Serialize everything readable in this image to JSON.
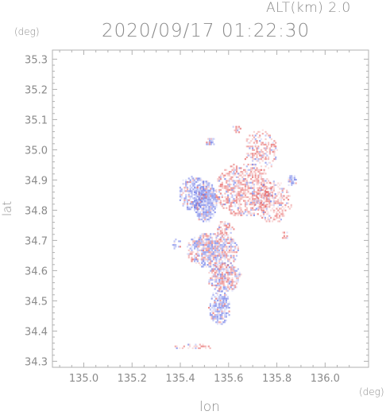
{
  "chart_data": {
    "type": "heatmap",
    "title": "2020/09/17 01:22:30",
    "subtitle": "ALT(km) 2.0",
    "xlabel": "lon",
    "ylabel": "lat",
    "x_unit": "(deg)",
    "y_unit": "(deg)",
    "xlim": [
      134.87,
      136.18
    ],
    "ylim": [
      34.28,
      35.33
    ],
    "xticks": [
      135.0,
      135.2,
      135.4,
      135.6,
      135.8,
      136.0
    ],
    "yticks": [
      34.3,
      34.4,
      34.5,
      34.6,
      34.7,
      34.8,
      34.9,
      35.0,
      35.1,
      35.2,
      35.3
    ],
    "xtick_labels": [
      "135.0",
      "135.2",
      "135.4",
      "135.6",
      "135.8",
      "136.0"
    ],
    "ytick_labels": [
      "34.3",
      "34.4",
      "34.5",
      "34.6",
      "34.7",
      "34.8",
      "34.9",
      "35.0",
      "35.1",
      "35.2",
      "35.3"
    ],
    "grid": false,
    "colors": {
      "positive": "#e45a5a",
      "negative": "#5a6ae4",
      "axis": "#b0b0b0"
    },
    "field_regions": [
      {
        "lon": 135.5,
        "lat": 34.83,
        "r_lon": 0.05,
        "r_lat": 0.07,
        "sign": -1,
        "density": 0.9
      },
      {
        "lon": 135.45,
        "lat": 34.86,
        "r_lon": 0.06,
        "r_lat": 0.06,
        "sign": -1,
        "density": 0.7
      },
      {
        "lon": 135.66,
        "lat": 34.87,
        "r_lon": 0.12,
        "r_lat": 0.09,
        "sign": 1,
        "density": 0.6
      },
      {
        "lon": 135.78,
        "lat": 34.83,
        "r_lon": 0.08,
        "r_lat": 0.07,
        "sign": 1,
        "density": 0.5
      },
      {
        "lon": 135.73,
        "lat": 35.0,
        "r_lon": 0.07,
        "r_lat": 0.07,
        "sign": 1,
        "density": 0.45
      },
      {
        "lon": 135.63,
        "lat": 35.07,
        "r_lon": 0.02,
        "r_lat": 0.015,
        "sign": 1,
        "density": 0.6
      },
      {
        "lon": 135.53,
        "lat": 34.67,
        "r_lon": 0.11,
        "r_lat": 0.06,
        "sign": 0,
        "density": 0.75
      },
      {
        "lon": 135.58,
        "lat": 34.58,
        "r_lon": 0.07,
        "r_lat": 0.05,
        "sign": 0,
        "density": 0.75
      },
      {
        "lon": 135.56,
        "lat": 34.48,
        "r_lon": 0.045,
        "r_lat": 0.06,
        "sign": -1,
        "density": 0.7
      },
      {
        "lon": 135.58,
        "lat": 34.74,
        "r_lon": 0.04,
        "r_lat": 0.03,
        "sign": 1,
        "density": 0.5
      },
      {
        "lon": 135.83,
        "lat": 34.72,
        "r_lon": 0.015,
        "r_lat": 0.015,
        "sign": 1,
        "density": 0.7
      },
      {
        "lon": 135.86,
        "lat": 34.9,
        "r_lon": 0.02,
        "r_lat": 0.02,
        "sign": -1,
        "density": 0.6
      },
      {
        "lon": 135.45,
        "lat": 34.35,
        "r_lon": 0.08,
        "r_lat": 0.01,
        "sign": 1,
        "density": 0.35
      },
      {
        "lon": 135.38,
        "lat": 34.69,
        "r_lon": 0.02,
        "r_lat": 0.02,
        "sign": -1,
        "density": 0.6
      },
      {
        "lon": 135.52,
        "lat": 35.03,
        "r_lon": 0.02,
        "r_lat": 0.015,
        "sign": -1,
        "density": 0.5
      }
    ]
  }
}
